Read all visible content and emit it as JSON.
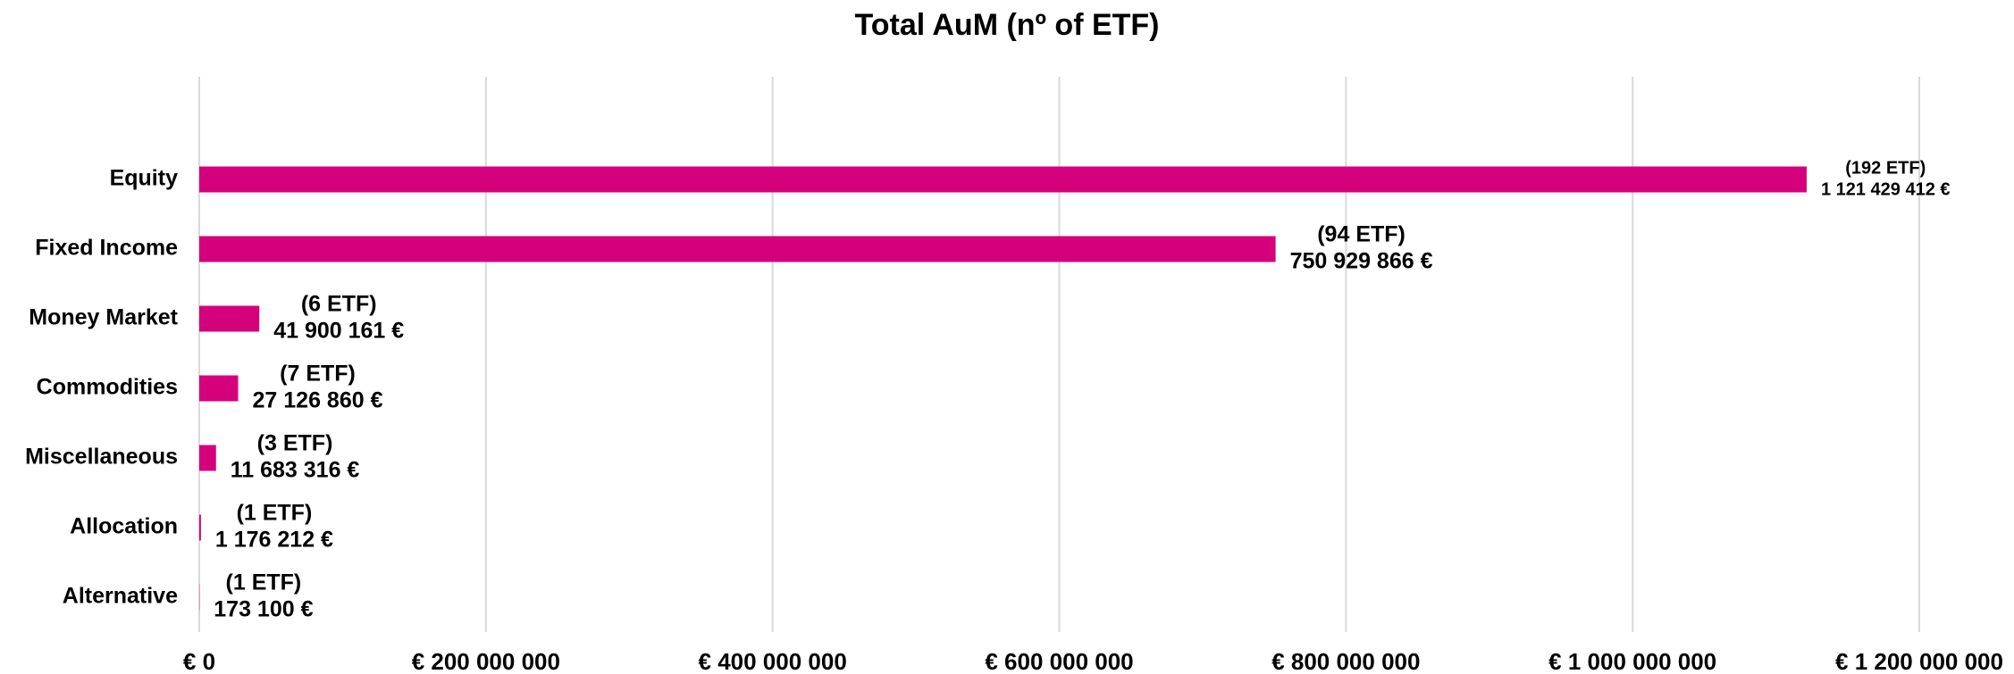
{
  "chart_data": {
    "type": "barh",
    "title": "Total AuM (nº of ETF)",
    "categories": [
      "Equity",
      "Fixed Income",
      "Money Market",
      "Commodities",
      "Miscellaneous",
      "Allocation",
      "Alternative"
    ],
    "values": [
      1121429412,
      750929866,
      41900161,
      27126860,
      11683316,
      1176212,
      173100
    ],
    "value_labels": [
      "1 121 429 412 €",
      "750 929 866 €",
      "41 900 161 €",
      "27 126 860 €",
      "11 683 316 €",
      "1 176 212 €",
      "173 100 €"
    ],
    "count_labels": [
      "(192 ETF)",
      "(94 ETF)",
      "(6 ETF)",
      "(7 ETF)",
      "(3 ETF)",
      "(1 ETF)",
      "(1 ETF)"
    ],
    "color": "#d5007c",
    "xlim": [
      0,
      1200000000
    ],
    "xticks": [
      {
        "value": 0,
        "label": "€ 0"
      },
      {
        "value": 200000000,
        "label": "€ 200 000 000"
      },
      {
        "value": 400000000,
        "label": "€ 400 000 000"
      },
      {
        "value": 600000000,
        "label": "€ 600 000 000"
      },
      {
        "value": 800000000,
        "label": "€ 800 000 000"
      },
      {
        "value": 1000000000,
        "label": "€ 1 000 000 000"
      },
      {
        "value": 1200000000,
        "label": "€ 1 200 000 000"
      }
    ],
    "grid": true
  }
}
